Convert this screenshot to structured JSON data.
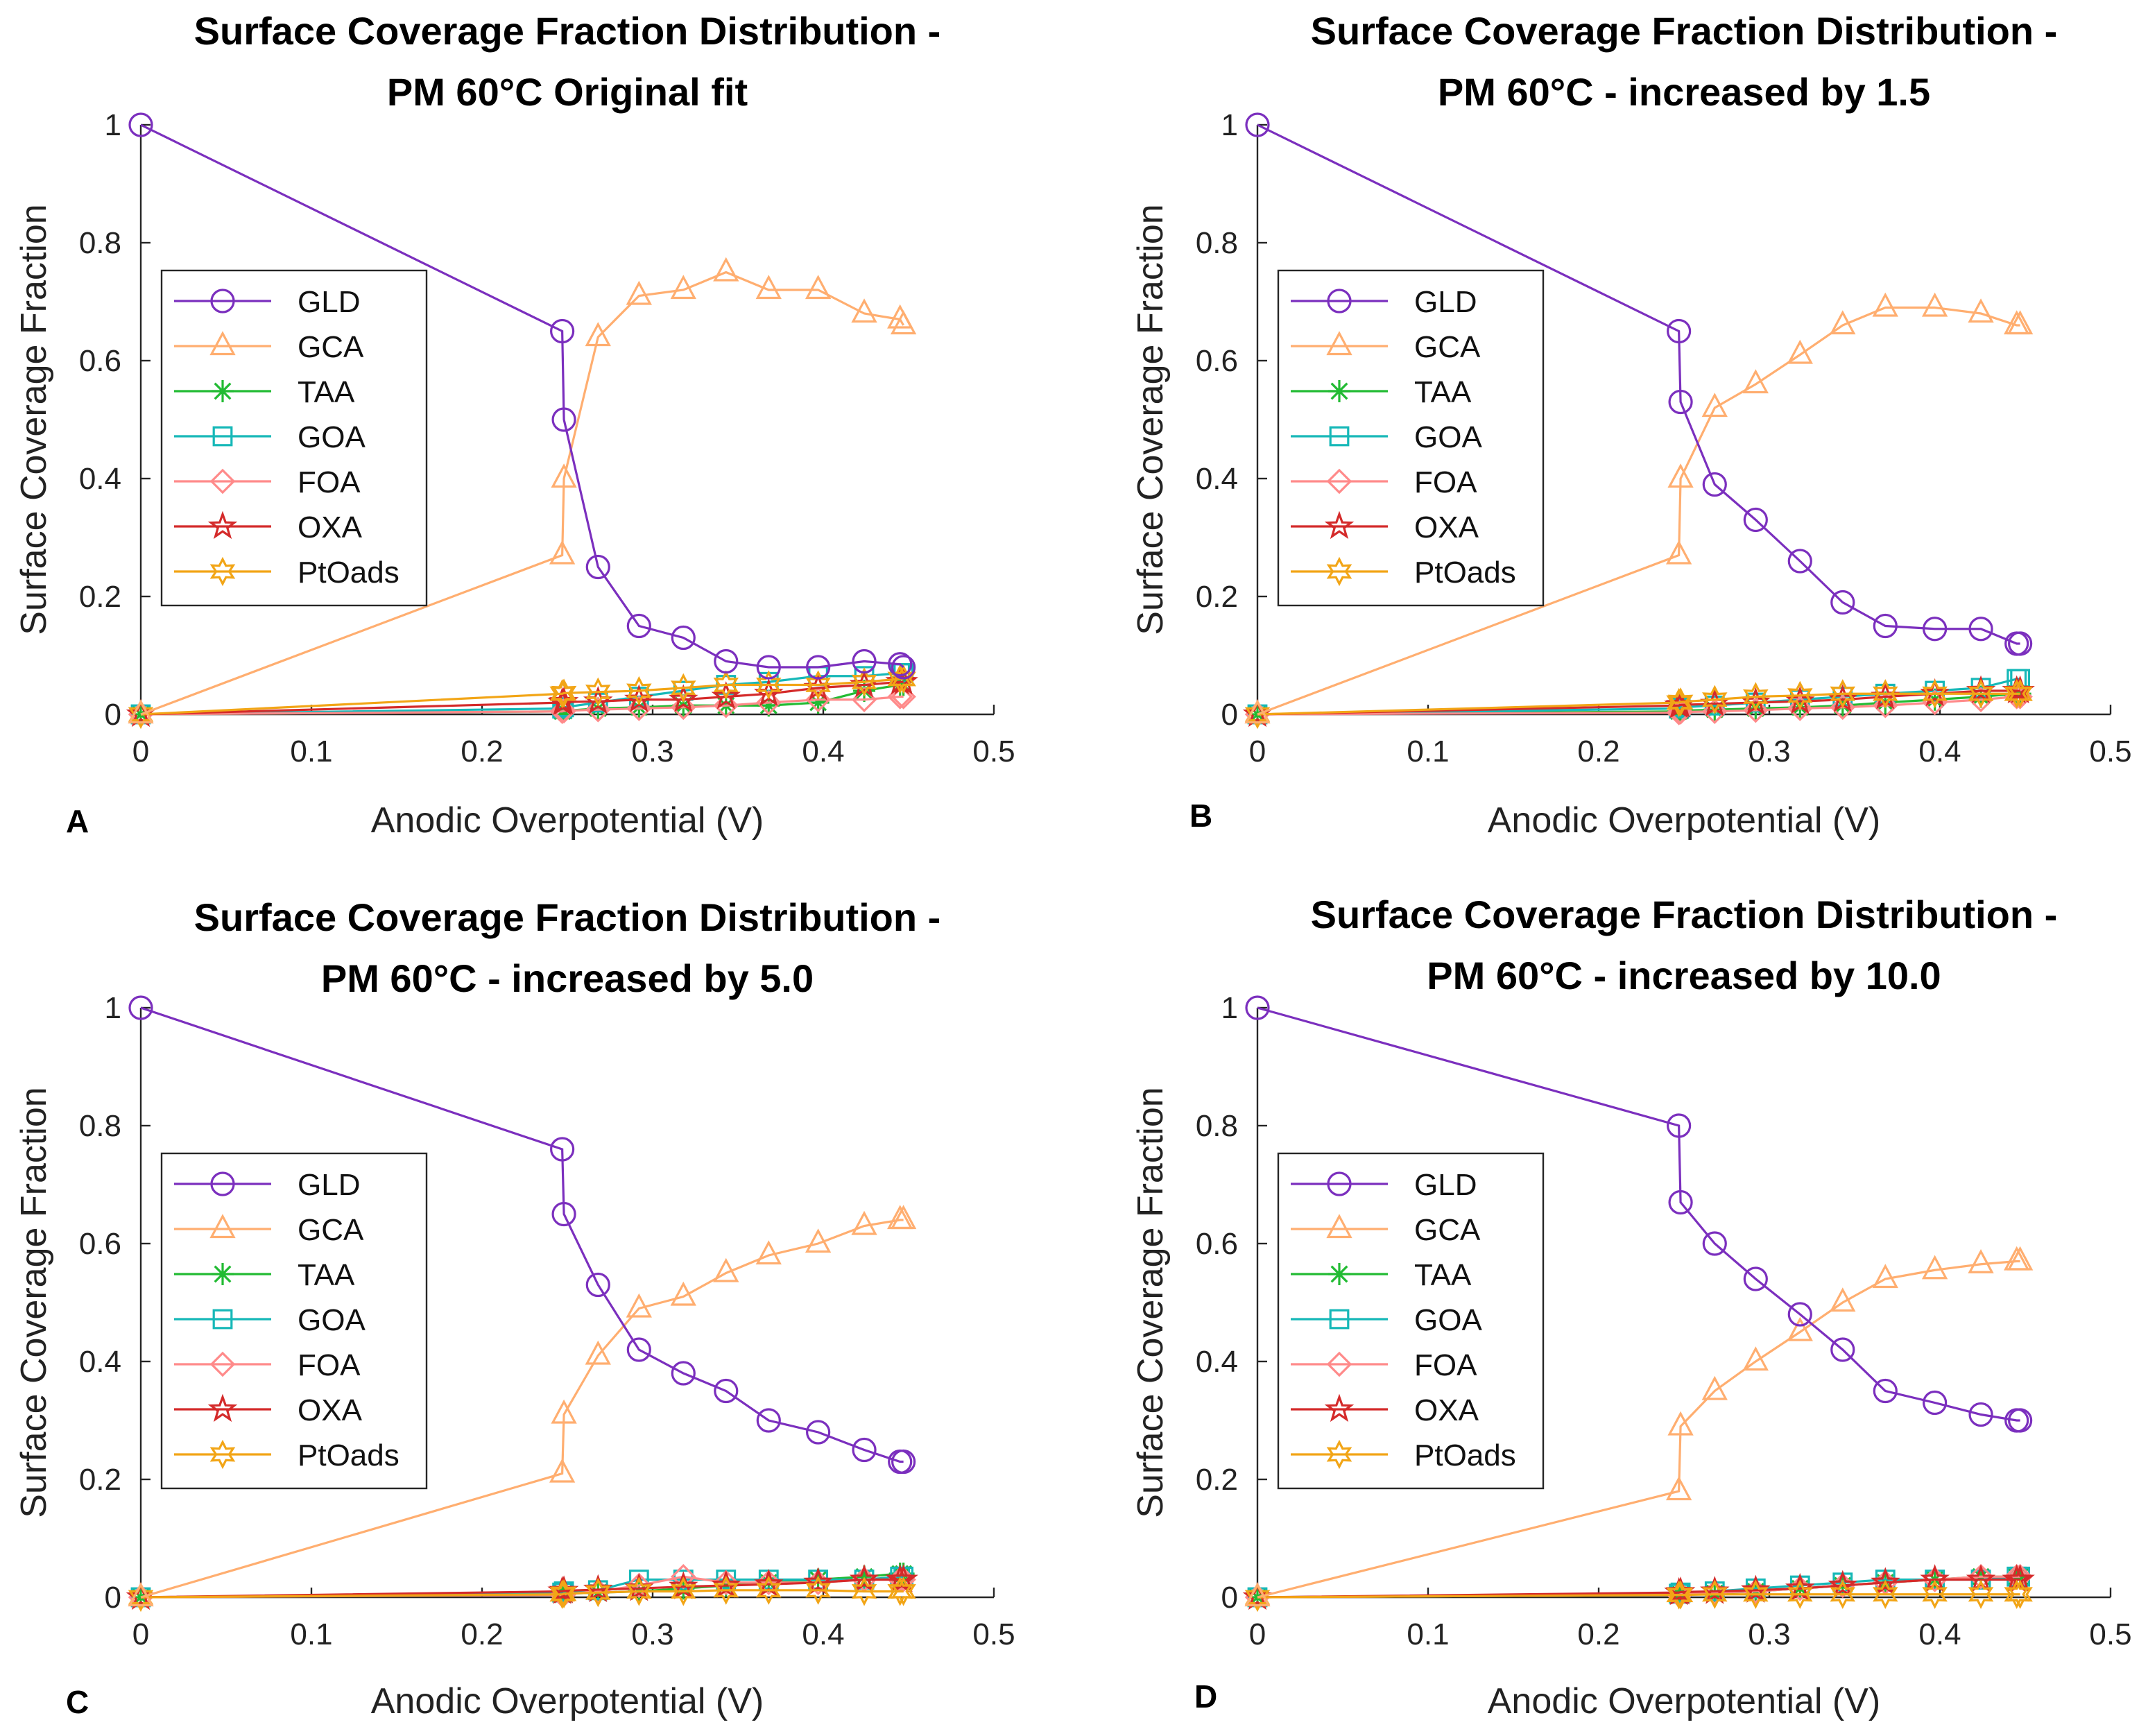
{
  "chart_data": [
    {
      "type": "line",
      "panel": "A",
      "title": [
        "Surface Coverage Fraction Distribution -",
        "PM 60°C Original fit"
      ],
      "xlabel": "Anodic Overpotential (V)",
      "ylabel": "Surface Coverage Fraction",
      "xlim": [
        0,
        0.5
      ],
      "ylim": [
        0,
        1
      ],
      "xticks": [
        "0",
        "0.1",
        "0.2",
        "0.3",
        "0.4",
        "0.5"
      ],
      "yticks": [
        "0",
        "0.2",
        "0.4",
        "0.6",
        "0.8",
        "1"
      ],
      "legend_position": "left",
      "x": [
        0,
        0.247,
        0.248,
        0.268,
        0.292,
        0.318,
        0.343,
        0.368,
        0.397,
        0.424,
        0.445,
        0.447
      ],
      "series": [
        {
          "name": "GLD",
          "marker": "circle",
          "color": "#7b2fbe",
          "values": [
            1.0,
            0.65,
            0.5,
            0.25,
            0.15,
            0.13,
            0.09,
            0.08,
            0.08,
            0.09,
            0.085,
            0.08
          ]
        },
        {
          "name": "GCA",
          "marker": "triangle",
          "color": "#ffae70",
          "values": [
            0.0,
            0.27,
            0.4,
            0.64,
            0.71,
            0.72,
            0.75,
            0.72,
            0.72,
            0.68,
            0.67,
            0.66
          ]
        },
        {
          "name": "TAA",
          "marker": "asterisk",
          "color": "#22bb33",
          "values": [
            0.0,
            0.005,
            0.006,
            0.01,
            0.012,
            0.015,
            0.015,
            0.015,
            0.02,
            0.04,
            0.05,
            0.05
          ]
        },
        {
          "name": "GOA",
          "marker": "square",
          "color": "#16b8b8",
          "values": [
            0.0,
            0.01,
            0.012,
            0.02,
            0.03,
            0.04,
            0.05,
            0.055,
            0.065,
            0.065,
            0.07,
            0.07
          ]
        },
        {
          "name": "FOA",
          "marker": "diamond",
          "color": "#ff8a8a",
          "values": [
            0.0,
            0.005,
            0.006,
            0.008,
            0.01,
            0.012,
            0.015,
            0.02,
            0.025,
            0.025,
            0.03,
            0.03
          ]
        },
        {
          "name": "OXA",
          "marker": "star",
          "color": "#d42a2a",
          "values": [
            0.0,
            0.02,
            0.021,
            0.022,
            0.025,
            0.025,
            0.03,
            0.035,
            0.045,
            0.05,
            0.055,
            0.055
          ]
        },
        {
          "name": "PtOads",
          "marker": "hexagram",
          "color": "#f2a516",
          "values": [
            0.0,
            0.035,
            0.036,
            0.038,
            0.04,
            0.045,
            0.05,
            0.05,
            0.05,
            0.055,
            0.06,
            0.06
          ]
        }
      ]
    },
    {
      "type": "line",
      "panel": "B",
      "title": [
        "Surface Coverage Fraction Distribution -",
        "PM 60°C - increased by 1.5"
      ],
      "xlabel": "Anodic Overpotential (V)",
      "ylabel": "Surface Coverage Fraction",
      "xlim": [
        0,
        0.5
      ],
      "ylim": [
        0,
        1
      ],
      "xticks": [
        "0",
        "0.1",
        "0.2",
        "0.3",
        "0.4",
        "0.5"
      ],
      "yticks": [
        "0",
        "0.2",
        "0.4",
        "0.6",
        "0.8",
        "1"
      ],
      "legend_position": "left",
      "x": [
        0,
        0.247,
        0.248,
        0.268,
        0.292,
        0.318,
        0.343,
        0.368,
        0.397,
        0.424,
        0.445,
        0.447
      ],
      "series": [
        {
          "name": "GLD",
          "marker": "circle",
          "color": "#7b2fbe",
          "values": [
            1.0,
            0.65,
            0.53,
            0.39,
            0.33,
            0.26,
            0.19,
            0.15,
            0.145,
            0.145,
            0.12,
            0.12
          ]
        },
        {
          "name": "GCA",
          "marker": "triangle",
          "color": "#ffae70",
          "values": [
            0.0,
            0.27,
            0.4,
            0.52,
            0.56,
            0.61,
            0.66,
            0.69,
            0.69,
            0.68,
            0.66,
            0.66
          ]
        },
        {
          "name": "TAA",
          "marker": "asterisk",
          "color": "#22bb33",
          "values": [
            0.0,
            0.005,
            0.006,
            0.008,
            0.01,
            0.012,
            0.015,
            0.02,
            0.025,
            0.03,
            0.035,
            0.035
          ]
        },
        {
          "name": "GOA",
          "marker": "square",
          "color": "#16b8b8",
          "values": [
            0.0,
            0.01,
            0.012,
            0.015,
            0.02,
            0.025,
            0.03,
            0.035,
            0.04,
            0.045,
            0.06,
            0.06
          ]
        },
        {
          "name": "FOA",
          "marker": "diamond",
          "color": "#ff8a8a",
          "values": [
            0.0,
            0.003,
            0.004,
            0.005,
            0.007,
            0.01,
            0.012,
            0.015,
            0.02,
            0.025,
            0.03,
            0.03
          ]
        },
        {
          "name": "OXA",
          "marker": "star",
          "color": "#d42a2a",
          "values": [
            0.0,
            0.015,
            0.016,
            0.018,
            0.02,
            0.022,
            0.025,
            0.03,
            0.035,
            0.04,
            0.04,
            0.04
          ]
        },
        {
          "name": "PtOads",
          "marker": "hexagram",
          "color": "#f2a516",
          "values": [
            0.0,
            0.02,
            0.021,
            0.025,
            0.03,
            0.032,
            0.035,
            0.035,
            0.035,
            0.035,
            0.035,
            0.035
          ]
        }
      ]
    },
    {
      "type": "line",
      "panel": "C",
      "title": [
        "Surface Coverage Fraction Distribution -",
        "PM 60°C - increased by 5.0"
      ],
      "xlabel": "Anodic Overpotential (V)",
      "ylabel": "Surface Coverage Fraction",
      "xlim": [
        0,
        0.5
      ],
      "ylim": [
        0,
        1
      ],
      "xticks": [
        "0",
        "0.1",
        "0.2",
        "0.3",
        "0.4",
        "0.5"
      ],
      "yticks": [
        "0",
        "0.2",
        "0.4",
        "0.6",
        "0.8",
        "1"
      ],
      "legend_position": "left",
      "x": [
        0,
        0.247,
        0.248,
        0.268,
        0.292,
        0.318,
        0.343,
        0.368,
        0.397,
        0.424,
        0.445,
        0.447
      ],
      "series": [
        {
          "name": "GLD",
          "marker": "circle",
          "color": "#7b2fbe",
          "values": [
            1.0,
            0.76,
            0.65,
            0.53,
            0.42,
            0.38,
            0.35,
            0.3,
            0.28,
            0.25,
            0.23,
            0.23
          ]
        },
        {
          "name": "GCA",
          "marker": "triangle",
          "color": "#ffae70",
          "values": [
            0.0,
            0.21,
            0.31,
            0.41,
            0.49,
            0.51,
            0.55,
            0.58,
            0.6,
            0.63,
            0.64,
            0.64
          ]
        },
        {
          "name": "TAA",
          "marker": "asterisk",
          "color": "#22bb33",
          "values": [
            0.0,
            0.005,
            0.006,
            0.008,
            0.01,
            0.015,
            0.02,
            0.025,
            0.03,
            0.035,
            0.04,
            0.04
          ]
        },
        {
          "name": "GOA",
          "marker": "square",
          "color": "#16b8b8",
          "values": [
            0.0,
            0.008,
            0.01,
            0.012,
            0.03,
            0.03,
            0.03,
            0.03,
            0.03,
            0.03,
            0.035,
            0.035
          ]
        },
        {
          "name": "FOA",
          "marker": "diamond",
          "color": "#ff8a8a",
          "values": [
            0.0,
            0.004,
            0.005,
            0.01,
            0.02,
            0.035,
            0.025,
            0.025,
            0.025,
            0.03,
            0.03,
            0.03
          ]
        },
        {
          "name": "OXA",
          "marker": "star",
          "color": "#d42a2a",
          "values": [
            0.0,
            0.01,
            0.011,
            0.013,
            0.015,
            0.018,
            0.02,
            0.022,
            0.025,
            0.03,
            0.03,
            0.03
          ]
        },
        {
          "name": "PtOads",
          "marker": "hexagram",
          "color": "#f2a516",
          "values": [
            0.0,
            0.005,
            0.006,
            0.008,
            0.01,
            0.01,
            0.012,
            0.012,
            0.012,
            0.01,
            0.01,
            0.01
          ]
        }
      ]
    },
    {
      "type": "line",
      "panel": "D",
      "title": [
        "Surface Coverage Fraction Distribution -",
        "PM 60°C - increased by 10.0"
      ],
      "xlabel": "Anodic Overpotential (V)",
      "ylabel": "Surface Coverage Fraction",
      "xlim": [
        0,
        0.5
      ],
      "ylim": [
        0,
        1
      ],
      "xticks": [
        "0",
        "0.1",
        "0.2",
        "0.3",
        "0.4",
        "0.5"
      ],
      "yticks": [
        "0",
        "0.2",
        "0.4",
        "0.6",
        "0.8",
        "1"
      ],
      "legend_position": "left",
      "x": [
        0,
        0.247,
        0.248,
        0.268,
        0.292,
        0.318,
        0.343,
        0.368,
        0.397,
        0.424,
        0.445,
        0.447
      ],
      "series": [
        {
          "name": "GLD",
          "marker": "circle",
          "color": "#7b2fbe",
          "values": [
            1.0,
            0.8,
            0.67,
            0.6,
            0.54,
            0.48,
            0.42,
            0.35,
            0.33,
            0.31,
            0.3,
            0.3
          ]
        },
        {
          "name": "GCA",
          "marker": "triangle",
          "color": "#ffae70",
          "values": [
            0.0,
            0.18,
            0.29,
            0.35,
            0.4,
            0.45,
            0.5,
            0.54,
            0.555,
            0.565,
            0.57,
            0.57
          ]
        },
        {
          "name": "TAA",
          "marker": "asterisk",
          "color": "#22bb33",
          "values": [
            0.0,
            0.004,
            0.005,
            0.007,
            0.01,
            0.015,
            0.02,
            0.025,
            0.03,
            0.035,
            0.035,
            0.035
          ]
        },
        {
          "name": "GOA",
          "marker": "square",
          "color": "#16b8b8",
          "values": [
            0.0,
            0.006,
            0.008,
            0.01,
            0.015,
            0.02,
            0.025,
            0.03,
            0.03,
            0.03,
            0.035,
            0.035
          ]
        },
        {
          "name": "FOA",
          "marker": "diamond",
          "color": "#ff8a8a",
          "values": [
            0.0,
            0.004,
            0.005,
            0.008,
            0.01,
            0.015,
            0.02,
            0.025,
            0.03,
            0.035,
            0.035,
            0.035
          ]
        },
        {
          "name": "OXA",
          "marker": "star",
          "color": "#d42a2a",
          "values": [
            0.0,
            0.008,
            0.009,
            0.01,
            0.012,
            0.015,
            0.02,
            0.025,
            0.03,
            0.03,
            0.03,
            0.03
          ]
        },
        {
          "name": "PtOads",
          "marker": "hexagram",
          "color": "#f2a516",
          "values": [
            0.0,
            0.004,
            0.004,
            0.005,
            0.005,
            0.005,
            0.005,
            0.005,
            0.005,
            0.005,
            0.005,
            0.005
          ]
        }
      ]
    }
  ]
}
